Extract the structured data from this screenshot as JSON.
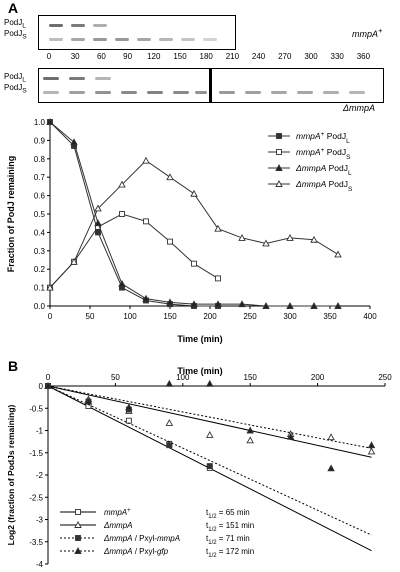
{
  "panel_a": {
    "letter": "A",
    "blot_top": {
      "band_labels": [
        "PodJ",
        "L",
        "PodJ",
        "S"
      ],
      "strain": "mmpA",
      "strain_sup": "+"
    },
    "time_labels": [
      "0",
      "30",
      "60",
      "90",
      "120",
      "150",
      "180",
      "210",
      "240",
      "270",
      "300",
      "330",
      "360"
    ],
    "blot_bottom": {
      "band_labels": [
        "PodJ",
        "L",
        "PodJ",
        "S"
      ],
      "strain": "ΔmmpA"
    }
  },
  "panel_b": {
    "letter": "B"
  },
  "chart_data": [
    {
      "type": "line",
      "ylabel": "Fraction of PodJ remaining",
      "xlabel": "Time (min)",
      "xlim": [
        0,
        400
      ],
      "ylim": [
        0,
        1.0
      ],
      "xticks": [
        "0",
        "50",
        "100",
        "150",
        "200",
        "250",
        "300",
        "350",
        "400"
      ],
      "yticks": [
        "0.0",
        "0.1",
        "0.2",
        "0.3",
        "0.4",
        "0.5",
        "0.6",
        "0.7",
        "0.8",
        "0.9",
        "1.0"
      ],
      "legend_position": "right",
      "series": [
        {
          "name_italic": "mmpA",
          "name_sup": "+",
          "name_rest": " PodJ",
          "name_sub": "L",
          "marker": "square-filled",
          "x": [
            0,
            30,
            60,
            90,
            120,
            150,
            180,
            210
          ],
          "y": [
            1.0,
            0.87,
            0.4,
            0.1,
            0.03,
            0.01,
            0.0,
            0.0
          ]
        },
        {
          "name_italic": "mmpA",
          "name_sup": "+",
          "name_rest": " PodJ",
          "name_sub": "S",
          "marker": "square-open",
          "x": [
            0,
            30,
            60,
            90,
            120,
            150,
            180,
            210
          ],
          "y": [
            0.1,
            0.24,
            0.43,
            0.5,
            0.46,
            0.35,
            0.23,
            0.15
          ]
        },
        {
          "name_italic": "ΔmmpA",
          "name_sup": "",
          "name_rest": " PodJ",
          "name_sub": "L",
          "marker": "triangle-filled",
          "x": [
            0,
            30,
            60,
            90,
            120,
            150,
            180,
            210,
            240,
            270,
            300,
            330,
            360
          ],
          "y": [
            1.0,
            0.89,
            0.45,
            0.12,
            0.04,
            0.02,
            0.01,
            0.01,
            0.01,
            0.0,
            0.0,
            0.0,
            0.0
          ]
        },
        {
          "name_italic": "ΔmmpA",
          "name_sup": "",
          "name_rest": " PodJ",
          "name_sub": "S",
          "marker": "triangle-open",
          "x": [
            0,
            30,
            60,
            90,
            120,
            150,
            180,
            210,
            240,
            270,
            300,
            330,
            360
          ],
          "y": [
            0.1,
            0.24,
            0.53,
            0.66,
            0.79,
            0.7,
            0.61,
            0.42,
            0.37,
            0.34,
            0.37,
            0.36,
            0.28
          ]
        }
      ]
    },
    {
      "type": "scatter",
      "ylabel": "Log2 (fraction of PodJs remaining)",
      "xlabel": "Time (min)",
      "xlim": [
        0,
        250
      ],
      "ylim": [
        -4,
        0
      ],
      "xticks": [
        "0",
        "50",
        "100",
        "150",
        "200",
        "250"
      ],
      "yticks": [
        "0",
        "-0.5",
        "-1",
        "-1.5",
        "-2",
        "-2.5",
        "-3",
        "-3.5",
        "-4"
      ],
      "legend_position": "bottom-left",
      "series": [
        {
          "name_italic": "mmpA",
          "name_sup": "+",
          "name_rest": "",
          "marker": "square-open",
          "line": "solid",
          "half_life_label": "t",
          "half_life_sub": "1/2",
          "half_life_value": " = 65 min",
          "x": [
            0,
            30,
            60,
            90,
            120
          ],
          "y": [
            0,
            -0.45,
            -0.78,
            -1.3,
            -1.84
          ],
          "fit": {
            "x": [
              0,
              240
            ],
            "y": [
              0,
              -3.7
            ]
          }
        },
        {
          "name_italic": "ΔmmpA",
          "name_sup": "",
          "name_rest": "",
          "marker": "triangle-open",
          "line": "solid",
          "half_life_label": "t",
          "half_life_sub": "1/2",
          "half_life_value": " = 151 min",
          "x": [
            0,
            30,
            60,
            90,
            120,
            150,
            180,
            210,
            240
          ],
          "y": [
            0,
            -0.3,
            -0.56,
            -0.83,
            -1.1,
            -1.22,
            -1.08,
            -1.15,
            -1.47
          ],
          "fit": {
            "x": [
              0,
              240
            ],
            "y": [
              0,
              -1.6
            ]
          }
        },
        {
          "name_italic": "ΔmmpA",
          "name_sup": "",
          "name_rest": " / Pxyl-",
          "name_italic2": "mmpA",
          "marker": "square-filled",
          "line": "dotted",
          "half_life_label": "t",
          "half_life_sub": "1/2",
          "half_life_value": " = 71 min",
          "x": [
            0,
            30,
            60,
            90,
            120
          ],
          "y": [
            0,
            -0.35,
            -0.53,
            -1.33,
            -1.8
          ],
          "fit": {
            "x": [
              0,
              240
            ],
            "y": [
              0,
              -3.35
            ]
          }
        },
        {
          "name_italic": "ΔmmpA",
          "name_sup": "",
          "name_rest": " / Pxyl-",
          "name_italic2": "gfp",
          "marker": "triangle-filled",
          "line": "dotted",
          "half_life_label": "t",
          "half_life_sub": "1/2",
          "half_life_value": " = 172 min",
          "x": [
            0,
            30,
            60,
            90,
            120,
            150,
            180,
            210,
            240
          ],
          "y": [
            0,
            -0.35,
            -0.48,
            0.05,
            0.05,
            -1.0,
            -1.14,
            -1.85,
            -1.33
          ],
          "fit": {
            "x": [
              0,
              240
            ],
            "y": [
              0,
              -1.4
            ]
          }
        }
      ]
    }
  ]
}
